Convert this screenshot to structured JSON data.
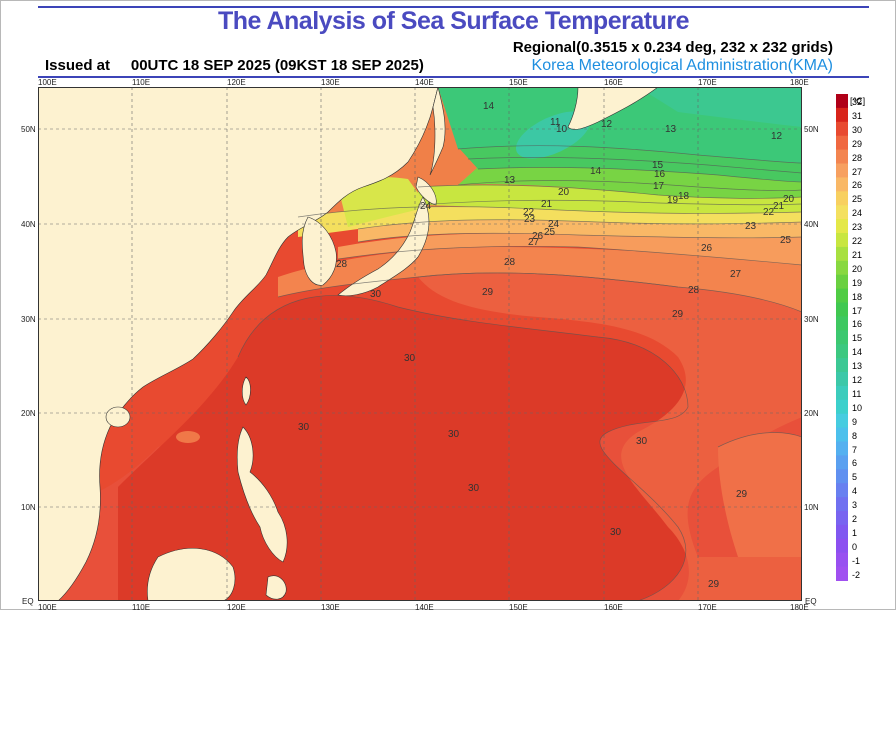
{
  "header": {
    "title": "The Analysis of Sea Surface Temperature",
    "grid_info": "Regional(0.3515 x 0.234 deg, 232 x 232 grids)",
    "issued": "Issued at     00UTC 18 SEP 2025 (09KST 18 SEP 2025)",
    "agency": "Korea Meteorological Administration(KMA)"
  },
  "axes": {
    "lon_labels": [
      "100E",
      "110E",
      "120E",
      "130E",
      "140E",
      "150E",
      "160E",
      "170E",
      "180E"
    ],
    "lat_labels": [
      "EQ",
      "10N",
      "20N",
      "30N",
      "40N",
      "50N"
    ]
  },
  "legend": {
    "unit": "[℃]",
    "levels": [
      "32",
      "31",
      "30",
      "29",
      "28",
      "27",
      "26",
      "25",
      "24",
      "23",
      "22",
      "21",
      "20",
      "19",
      "18",
      "17",
      "16",
      "15",
      "14",
      "13",
      "12",
      "11",
      "10",
      "9",
      "8",
      "7",
      "6",
      "5",
      "4",
      "3",
      "2",
      "1",
      "0",
      "-1",
      "-2"
    ],
    "colors": [
      "#b00018",
      "#d8241a",
      "#e84a30",
      "#f06840",
      "#f38550",
      "#f7a060",
      "#f9b866",
      "#f8d060",
      "#f4e060",
      "#e4e848",
      "#c8e640",
      "#a8e040",
      "#88d840",
      "#6ad040",
      "#50cc44",
      "#40c850",
      "#3ec860",
      "#3cc870",
      "#3cc880",
      "#3cc894",
      "#3cc8a8",
      "#3cccbc",
      "#3cd0cc",
      "#46cce0",
      "#4cc0ec",
      "#54b0f0",
      "#5aa0f0",
      "#6090f0",
      "#6880f0",
      "#7070f0",
      "#7864f0",
      "#8058f0",
      "#8c50f0",
      "#9850f0",
      "#a050f0"
    ]
  },
  "map": {
    "contour_labels": [
      "10",
      "11",
      "12",
      "12",
      "13",
      "13",
      "14",
      "14",
      "15",
      "16",
      "17",
      "18",
      "19",
      "20",
      "20",
      "21",
      "21",
      "22",
      "22",
      "23",
      "23",
      "24",
      "24",
      "25",
      "25",
      "26",
      "26",
      "27",
      "27",
      "28",
      "28",
      "28",
      "29",
      "29",
      "29",
      "29",
      "30",
      "30",
      "30",
      "30",
      "30",
      "30",
      "30"
    ]
  }
}
